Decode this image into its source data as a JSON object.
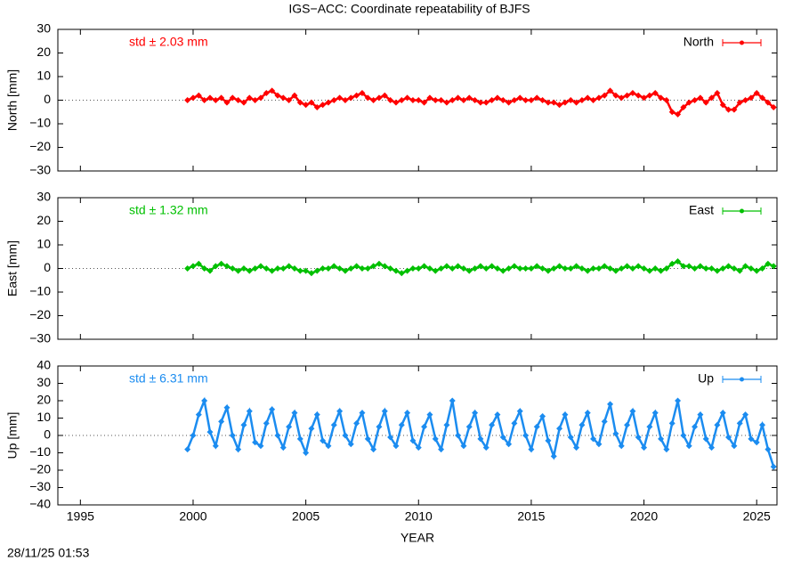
{
  "timestamp": "28/11/25 01:53",
  "chart_data": [
    {
      "type": "scatter",
      "title": "IGS−ACC: Coordinate repeatability of BJFS",
      "ylabel": "North [mm]",
      "annotation": "std ± 2.03 mm",
      "xlim": [
        1994,
        2025.9
      ],
      "xticks": [
        1995,
        2000,
        2005,
        2010,
        2015,
        2020,
        2025
      ],
      "ylim": [
        -30,
        30
      ],
      "yticks": [
        {
          "value": -30,
          "label": "−30"
        },
        {
          "value": -20,
          "label": "−20"
        },
        {
          "value": -10,
          "label": "−10"
        },
        0,
        10,
        20,
        30
      ],
      "legend": "upper right",
      "series": [
        {
          "name": "North",
          "color": "#ff0000",
          "x": [
            1999.75,
            2000,
            2000.25,
            2000.5,
            2000.75,
            2001,
            2001.25,
            2001.5,
            2001.75,
            2002,
            2002.25,
            2002.5,
            2002.75,
            2003,
            2003.25,
            2003.5,
            2003.75,
            2004,
            2004.25,
            2004.5,
            2004.75,
            2005,
            2005.25,
            2005.5,
            2005.75,
            2006,
            2006.25,
            2006.5,
            2006.75,
            2007,
            2007.25,
            2007.5,
            2007.75,
            2008,
            2008.25,
            2008.5,
            2008.75,
            2009,
            2009.25,
            2009.5,
            2009.75,
            2010,
            2010.25,
            2010.5,
            2010.75,
            2011,
            2011.25,
            2011.5,
            2011.75,
            2012,
            2012.25,
            2012.5,
            2012.75,
            2013,
            2013.25,
            2013.5,
            2013.75,
            2014,
            2014.25,
            2014.5,
            2014.75,
            2015,
            2015.25,
            2015.5,
            2015.75,
            2016,
            2016.25,
            2016.5,
            2016.75,
            2017,
            2017.25,
            2017.5,
            2017.75,
            2018,
            2018.25,
            2018.5,
            2018.75,
            2019,
            2019.25,
            2019.5,
            2019.75,
            2020,
            2020.25,
            2020.5,
            2020.75,
            2021,
            2021.25,
            2021.5,
            2021.75,
            2022,
            2022.25,
            2022.5,
            2022.75,
            2023,
            2023.25,
            2023.5,
            2023.75,
            2024,
            2024.25,
            2024.5,
            2024.75,
            2025,
            2025.25,
            2025.5,
            2025.75
          ],
          "values": [
            0,
            1,
            2,
            0,
            1,
            0,
            1,
            -1,
            1,
            0,
            -1,
            1,
            0,
            1,
            3,
            4,
            2,
            1,
            0,
            2,
            -1,
            -2,
            -1,
            -3,
            -2,
            -1,
            0,
            1,
            0,
            1,
            2,
            3,
            1,
            0,
            1,
            2,
            0,
            -1,
            0,
            1,
            0,
            0,
            -1,
            1,
            0,
            0,
            -1,
            0,
            1,
            0,
            1,
            0,
            -1,
            -1,
            0,
            1,
            0,
            -1,
            0,
            1,
            0,
            0,
            1,
            0,
            -1,
            -1,
            -2,
            -1,
            0,
            -1,
            0,
            1,
            0,
            1,
            2,
            4,
            2,
            1,
            2,
            3,
            2,
            1,
            2,
            3,
            1,
            0,
            -5,
            -6,
            -3,
            -1,
            0,
            1,
            -1,
            1,
            3,
            -2,
            -4,
            -4,
            -1,
            0,
            1,
            3,
            1,
            -1,
            -3
          ]
        }
      ]
    },
    {
      "type": "scatter",
      "ylabel": "East [mm]",
      "annotation": "std ± 1.32 mm",
      "xlim": [
        1994,
        2025.9
      ],
      "xticks": [
        1995,
        2000,
        2005,
        2010,
        2015,
        2020,
        2025
      ],
      "ylim": [
        -30,
        30
      ],
      "yticks": [
        {
          "value": -30,
          "label": "−30"
        },
        {
          "value": -20,
          "label": "−20"
        },
        {
          "value": -10,
          "label": "−10"
        },
        0,
        10,
        20,
        30
      ],
      "legend": "upper right",
      "series": [
        {
          "name": "East",
          "color": "#00c000",
          "x": [
            1999.75,
            2000,
            2000.25,
            2000.5,
            2000.75,
            2001,
            2001.25,
            2001.5,
            2001.75,
            2002,
            2002.25,
            2002.5,
            2002.75,
            2003,
            2003.25,
            2003.5,
            2003.75,
            2004,
            2004.25,
            2004.5,
            2004.75,
            2005,
            2005.25,
            2005.5,
            2005.75,
            2006,
            2006.25,
            2006.5,
            2006.75,
            2007,
            2007.25,
            2007.5,
            2007.75,
            2008,
            2008.25,
            2008.5,
            2008.75,
            2009,
            2009.25,
            2009.5,
            2009.75,
            2010,
            2010.25,
            2010.5,
            2010.75,
            2011,
            2011.25,
            2011.5,
            2011.75,
            2012,
            2012.25,
            2012.5,
            2012.75,
            2013,
            2013.25,
            2013.5,
            2013.75,
            2014,
            2014.25,
            2014.5,
            2014.75,
            2015,
            2015.25,
            2015.5,
            2015.75,
            2016,
            2016.25,
            2016.5,
            2016.75,
            2017,
            2017.25,
            2017.5,
            2017.75,
            2018,
            2018.25,
            2018.5,
            2018.75,
            2019,
            2019.25,
            2019.5,
            2019.75,
            2020,
            2020.25,
            2020.5,
            2020.75,
            2021,
            2021.25,
            2021.5,
            2021.75,
            2022,
            2022.25,
            2022.5,
            2022.75,
            2023,
            2023.25,
            2023.5,
            2023.75,
            2024,
            2024.25,
            2024.5,
            2024.75,
            2025,
            2025.25,
            2025.5,
            2025.75
          ],
          "values": [
            0,
            1,
            2,
            0,
            -1,
            1,
            2,
            1,
            0,
            -1,
            0,
            -1,
            0,
            1,
            0,
            -1,
            0,
            0,
            1,
            0,
            -1,
            -1,
            -2,
            -1,
            0,
            0,
            1,
            0,
            -1,
            0,
            1,
            0,
            0,
            1,
            2,
            1,
            0,
            -1,
            -2,
            -1,
            0,
            0,
            1,
            0,
            -1,
            0,
            1,
            0,
            1,
            0,
            -1,
            0,
            1,
            0,
            1,
            0,
            -1,
            0,
            1,
            0,
            0,
            0,
            1,
            0,
            -1,
            0,
            1,
            0,
            0,
            1,
            0,
            -1,
            0,
            0,
            1,
            0,
            -1,
            0,
            1,
            0,
            1,
            0,
            -1,
            0,
            -1,
            0,
            2,
            3,
            1,
            1,
            0,
            1,
            0,
            0,
            -1,
            0,
            1,
            0,
            -1,
            1,
            0,
            -1,
            0,
            2,
            1
          ]
        }
      ]
    },
    {
      "type": "scatter",
      "ylabel": "Up [mm]",
      "xlabel": "YEAR",
      "annotation": "std ± 6.31 mm",
      "xlim": [
        1994,
        2025.9
      ],
      "xticks": [
        1995,
        2000,
        2005,
        2010,
        2015,
        2020,
        2025
      ],
      "ylim": [
        -40,
        40
      ],
      "yticks": [
        {
          "value": -40,
          "label": "−40"
        },
        {
          "value": -30,
          "label": "−30"
        },
        {
          "value": -20,
          "label": "−20"
        },
        {
          "value": -10,
          "label": "−10"
        },
        0,
        10,
        20,
        30,
        40
      ],
      "legend": "upper right",
      "series": [
        {
          "name": "Up",
          "color": "#1b8cf0",
          "x": [
            1999.75,
            2000,
            2000.25,
            2000.5,
            2000.75,
            2001,
            2001.25,
            2001.5,
            2001.75,
            2002,
            2002.25,
            2002.5,
            2002.75,
            2003,
            2003.25,
            2003.5,
            2003.75,
            2004,
            2004.25,
            2004.5,
            2004.75,
            2005,
            2005.25,
            2005.5,
            2005.75,
            2006,
            2006.25,
            2006.5,
            2006.75,
            2007,
            2007.25,
            2007.5,
            2007.75,
            2008,
            2008.25,
            2008.5,
            2008.75,
            2009,
            2009.25,
            2009.5,
            2009.75,
            2010,
            2010.25,
            2010.5,
            2010.75,
            2011,
            2011.25,
            2011.5,
            2011.75,
            2012,
            2012.25,
            2012.5,
            2012.75,
            2013,
            2013.25,
            2013.5,
            2013.75,
            2014,
            2014.25,
            2014.5,
            2014.75,
            2015,
            2015.25,
            2015.5,
            2015.75,
            2016,
            2016.25,
            2016.5,
            2016.75,
            2017,
            2017.25,
            2017.5,
            2017.75,
            2018,
            2018.25,
            2018.5,
            2018.75,
            2019,
            2019.25,
            2019.5,
            2019.75,
            2020,
            2020.25,
            2020.5,
            2020.75,
            2021,
            2021.25,
            2021.5,
            2021.75,
            2022,
            2022.25,
            2022.5,
            2022.75,
            2023,
            2023.25,
            2023.5,
            2023.75,
            2024,
            2024.25,
            2024.5,
            2024.75,
            2025,
            2025.25,
            2025.5,
            2025.75
          ],
          "values": [
            -8,
            0,
            12,
            20,
            2,
            -6,
            8,
            16,
            0,
            -8,
            6,
            14,
            -4,
            -6,
            7,
            15,
            0,
            -7,
            5,
            13,
            -2,
            -10,
            4,
            12,
            -3,
            -6,
            6,
            14,
            0,
            -5,
            7,
            13,
            -2,
            -8,
            5,
            14,
            -1,
            -6,
            6,
            13,
            -3,
            -7,
            5,
            12,
            -2,
            -8,
            6,
            20,
            0,
            -6,
            5,
            13,
            -2,
            -7,
            6,
            12,
            -1,
            -5,
            7,
            14,
            0,
            -8,
            5,
            11,
            -3,
            -12,
            4,
            12,
            -1,
            -7,
            6,
            13,
            -2,
            -5,
            8,
            18,
            1,
            -6,
            6,
            14,
            -1,
            -7,
            5,
            13,
            -2,
            -8,
            7,
            20,
            0,
            -6,
            5,
            12,
            -2,
            -7,
            6,
            13,
            -1,
            -6,
            7,
            12,
            -2,
            -4,
            6,
            -8,
            -18
          ]
        }
      ]
    }
  ]
}
